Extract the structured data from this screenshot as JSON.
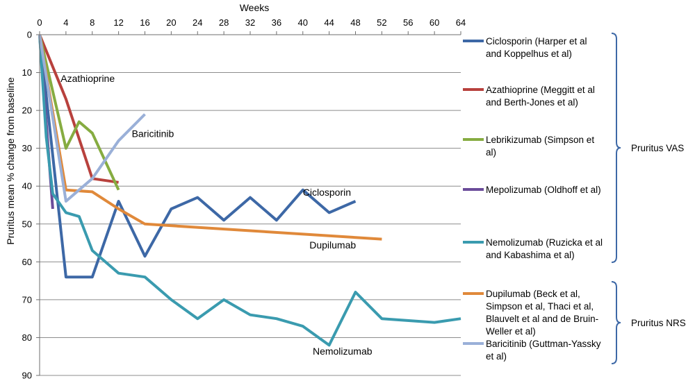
{
  "chart_data": {
    "type": "line",
    "xlabel": "Weeks",
    "ylabel": "Pruritus mean % change from baseline",
    "xlim": [
      0,
      64
    ],
    "ylim": [
      0,
      90
    ],
    "y_reversed": true,
    "x_axis_position": "top",
    "x_ticks": [
      0,
      4,
      8,
      12,
      16,
      20,
      24,
      28,
      32,
      36,
      40,
      44,
      48,
      52,
      56,
      60,
      64
    ],
    "y_ticks": [
      0,
      10,
      20,
      30,
      40,
      50,
      60,
      70,
      80,
      90
    ],
    "grid": "horizontal",
    "legend_position": "right",
    "series": [
      {
        "key": "ciclosporin",
        "name": "Ciclosporin (Harper et al and Koppelhus et al)",
        "legend_lines": [
          "Ciclosporin (Harper et al",
          "and Koppelhus et al)"
        ],
        "color": "#3D68A6",
        "x": [
          0,
          4,
          8,
          12,
          16,
          20,
          24,
          28,
          32,
          36,
          40,
          44,
          48
        ],
        "y": [
          0,
          64,
          64,
          44,
          58.5,
          46,
          43,
          49,
          43,
          49,
          41,
          47,
          44
        ]
      },
      {
        "key": "azathioprine",
        "name": "Azathioprine (Meggitt et al and Berth-Jones et al)",
        "legend_lines": [
          "Azathioprine (Meggitt et al",
          "and Berth-Jones et al)"
        ],
        "color": "#B8413D",
        "x": [
          0,
          4,
          8,
          12
        ],
        "y": [
          0,
          17,
          38,
          39
        ]
      },
      {
        "key": "lebrikizumab",
        "name": "Lebrikizumab (Simpson et al)",
        "legend_lines": [
          "Lebrikizumab (Simpson et",
          "al)"
        ],
        "color": "#86AC41",
        "x": [
          0,
          4,
          6,
          8,
          12
        ],
        "y": [
          0,
          30,
          23,
          26,
          41
        ]
      },
      {
        "key": "mepolizumab",
        "name": "Mepolizumab (Oldhoff et al)",
        "legend_lines": [
          "Mepolizumab (Oldhoff et al)"
        ],
        "color": "#6B4C9A",
        "x": [
          0,
          2
        ],
        "y": [
          0,
          46
        ]
      },
      {
        "key": "nemolizumab",
        "name": "Nemolizumab (Ruzicka et al and Kabashima et al)",
        "legend_lines": [
          "Nemolizumab (Ruzicka et al",
          "and Kabashima et al)"
        ],
        "color": "#3A9BAF",
        "x": [
          0,
          1,
          2,
          4,
          6,
          8,
          12,
          16,
          20,
          24,
          28,
          32,
          36,
          40,
          44,
          48,
          52,
          60,
          64
        ],
        "y": [
          0,
          27,
          42,
          47,
          48,
          57,
          63,
          64,
          70,
          75,
          70,
          74,
          75,
          77,
          82,
          68,
          75,
          76,
          75
        ]
      },
      {
        "key": "dupilumab",
        "name": "Dupilumab (Beck et al, Simpson et al, Thaci et al, Blauvelt et al and de Bruin-Weller et al)",
        "legend_lines": [
          "Dupilumab (Beck et al,",
          "Simpson et al, Thaci et al,",
          "Blauvelt et al and de Bruin-",
          "Weller et al)"
        ],
        "color": "#E0893A",
        "x": [
          0,
          4,
          8,
          12,
          16,
          52
        ],
        "y": [
          0,
          41,
          41.5,
          46,
          50,
          54
        ]
      },
      {
        "key": "baricitinib",
        "name": "Baricitinib (Guttman-Yassky et al)",
        "legend_lines": [
          "Baricitinib (Guttman-Yassky",
          "et al)"
        ],
        "color": "#9AB0D8",
        "x": [
          0,
          4,
          8,
          12,
          16
        ],
        "y": [
          0,
          44,
          38,
          28,
          21
        ]
      }
    ],
    "annotations": [
      {
        "text": "Azathioprine",
        "x": 3.2,
        "y": 12.5
      },
      {
        "text": "Baricitinib",
        "x": 14,
        "y": 27
      },
      {
        "text": "Ciclosporin",
        "x": 40,
        "y": 42.5
      },
      {
        "text": "Dupilumab",
        "x": 41,
        "y": 56.5
      },
      {
        "text": "Nemolizumab",
        "x": 41.5,
        "y": 84.5
      }
    ],
    "groups": [
      {
        "label": "Pruritus VAS",
        "series": [
          "ciclosporin",
          "azathioprine",
          "lebrikizumab",
          "mepolizumab",
          "nemolizumab"
        ]
      },
      {
        "label": "Pruritus NRS",
        "series": [
          "dupilumab",
          "baricitinib"
        ]
      }
    ]
  }
}
